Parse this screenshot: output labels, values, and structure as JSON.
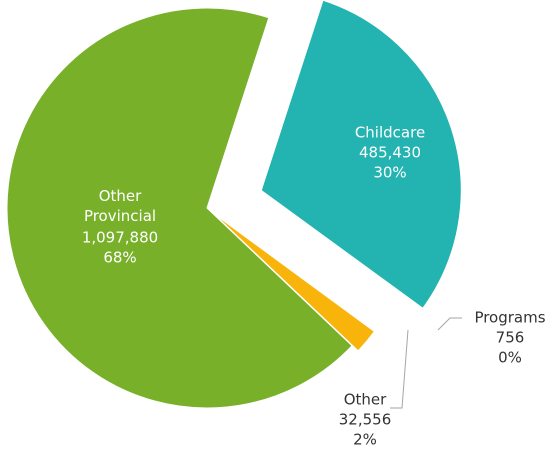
{
  "chart_data": {
    "type": "pie",
    "categories": [
      "Childcare",
      "Programs",
      "Other",
      "Other Provincial"
    ],
    "values": [
      485430,
      756,
      32556,
      1097880
    ],
    "value_labels": [
      "485,430",
      "756",
      "32,556",
      "1,097,880"
    ],
    "percent_labels": [
      "30%",
      "0%",
      "2%",
      "68%"
    ],
    "colors": [
      "#23b3b0",
      "#f9b40c",
      "#f9b40c",
      "#78b02a"
    ]
  }
}
